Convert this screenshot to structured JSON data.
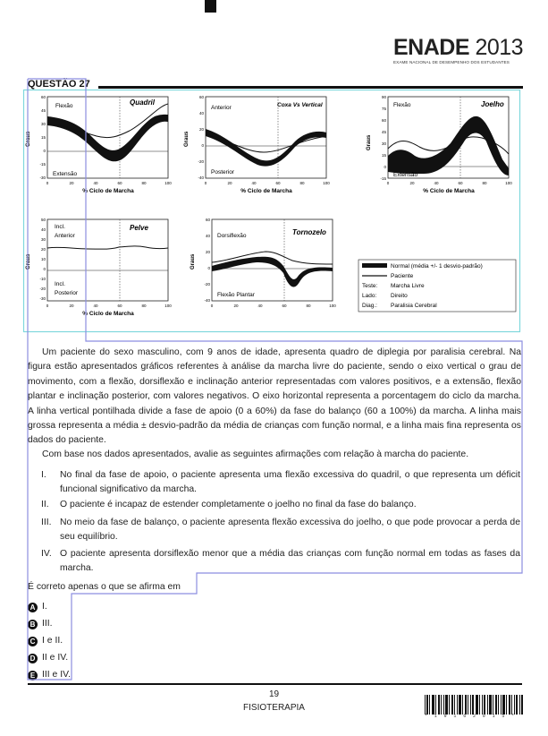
{
  "header": {
    "logo_main": "ENADE",
    "logo_year": "2013",
    "logo_sub": "EXAME NACIONAL DE DESEMPENHO DOS ESTUDANTES"
  },
  "question": {
    "title": "QUESTÃO 27",
    "paragraph1": "Um paciente do sexo masculino, com 9 anos de idade, apresenta quadro de diplegia por paralisia cerebral. Na figura estão apresentados gráficos referentes à análise da marcha livre do paciente, sendo o eixo vertical o grau de movimento, com a flexão, dorsiflexão e inclinação anterior representadas com valores positivos, e a extensão, flexão plantar e inclinação posterior, com valores negativos. O eixo horizontal representa a porcentagem do ciclo da marcha. A linha vertical pontilhada divide a fase de apoio (0 a 60%) da fase do balanço (60 a 100%) da marcha. A linha mais grossa representa a média ± desvio-padrão da média de crianças com função normal, e a linha mais fina representa os dados do paciente.",
    "paragraph2": "Com base nos dados apresentados, avalie as seguintes afirmações com relação à marcha do paciente.",
    "items": [
      {
        "num": "I.",
        "text": "No final da fase de apoio, o paciente apresenta uma flexão excessiva do quadril, o que representa um déficit funcional significativo da marcha."
      },
      {
        "num": "II.",
        "text": "O paciente é incapaz de estender completamente o joelho no final da fase do balanço."
      },
      {
        "num": "III.",
        "text": "No meio da fase de balanço, o paciente apresenta flexão excessiva do joelho, o que pode provocar a perda de seu equilíbrio."
      },
      {
        "num": "IV.",
        "text": "O paciente apresenta dorsiflexão menor que a média das crianças com função normal em todas as fases da marcha."
      }
    ],
    "ask": "É correto apenas o que se afirma em",
    "options": [
      {
        "letter": "A",
        "text": "I."
      },
      {
        "letter": "B",
        "text": "III."
      },
      {
        "letter": "C",
        "text": "I e II."
      },
      {
        "letter": "D",
        "text": "II e IV."
      },
      {
        "letter": "E",
        "text": "III e IV."
      }
    ]
  },
  "footer": {
    "page": "19",
    "course": "FISIOTERAPIA",
    "barcode_digits": "* 1 9 1 6 2 0 1 5 *"
  },
  "figure": {
    "panels": [
      {
        "title": "Quadril",
        "top_label": "Flexão",
        "bottom_label": "Extensão",
        "ylabel": "Graus",
        "xlabel": "% Ciclo de Marcha",
        "yticks": [
          "60",
          "45",
          "30",
          "15",
          "0",
          "-15",
          "-30"
        ]
      },
      {
        "title": "Coxa Vs Vertical",
        "top_label": "Anterior",
        "bottom_label": "Posterior",
        "ylabel": "Graus",
        "xlabel": "% Ciclo de Marcha",
        "yticks": [
          "60",
          "40",
          "20",
          "0",
          "-20",
          "-40"
        ]
      },
      {
        "title": "Joelho",
        "top_label": "Flexão",
        "bottom_label": "Extensão",
        "ylabel": "Graus",
        "xlabel": "% Ciclo de Marcha",
        "yticks": [
          "90",
          "75",
          "60",
          "45",
          "30",
          "15",
          "0",
          "-15"
        ]
      },
      {
        "title": "Pelve",
        "top_label": "Incl.",
        "top_label2": "Anterior",
        "bottom_label": "Incl.",
        "bottom_label2": "Posterior",
        "ylabel": "Graus",
        "xlabel": "% Ciclo de Marcha",
        "yticks": [
          "50",
          "40",
          "30",
          "20",
          "10",
          "0",
          "-10",
          "-20",
          "-30"
        ]
      },
      {
        "title": "Tornozelo",
        "top_label": "Dorsiflexão",
        "bottom_label": "Flexão Plantar",
        "ylabel": "Graus",
        "xlabel": "% Ciclo de Marcha",
        "yticks": [
          "60",
          "40",
          "20",
          "0",
          "-20",
          "-40"
        ]
      }
    ],
    "xticks": [
      "0",
      "20",
      "40",
      "60",
      "80",
      "100"
    ],
    "legend": {
      "normal": "Normal (média +/- 1 desvio-padrão)",
      "patient": "Paciente",
      "test_key": "Teste:",
      "test_val": "Marcha Livre",
      "side_key": "Lado:",
      "side_val": "Direito",
      "diag_key": "Diag.:",
      "diag_val": "Paralisia Cerebral"
    }
  }
}
